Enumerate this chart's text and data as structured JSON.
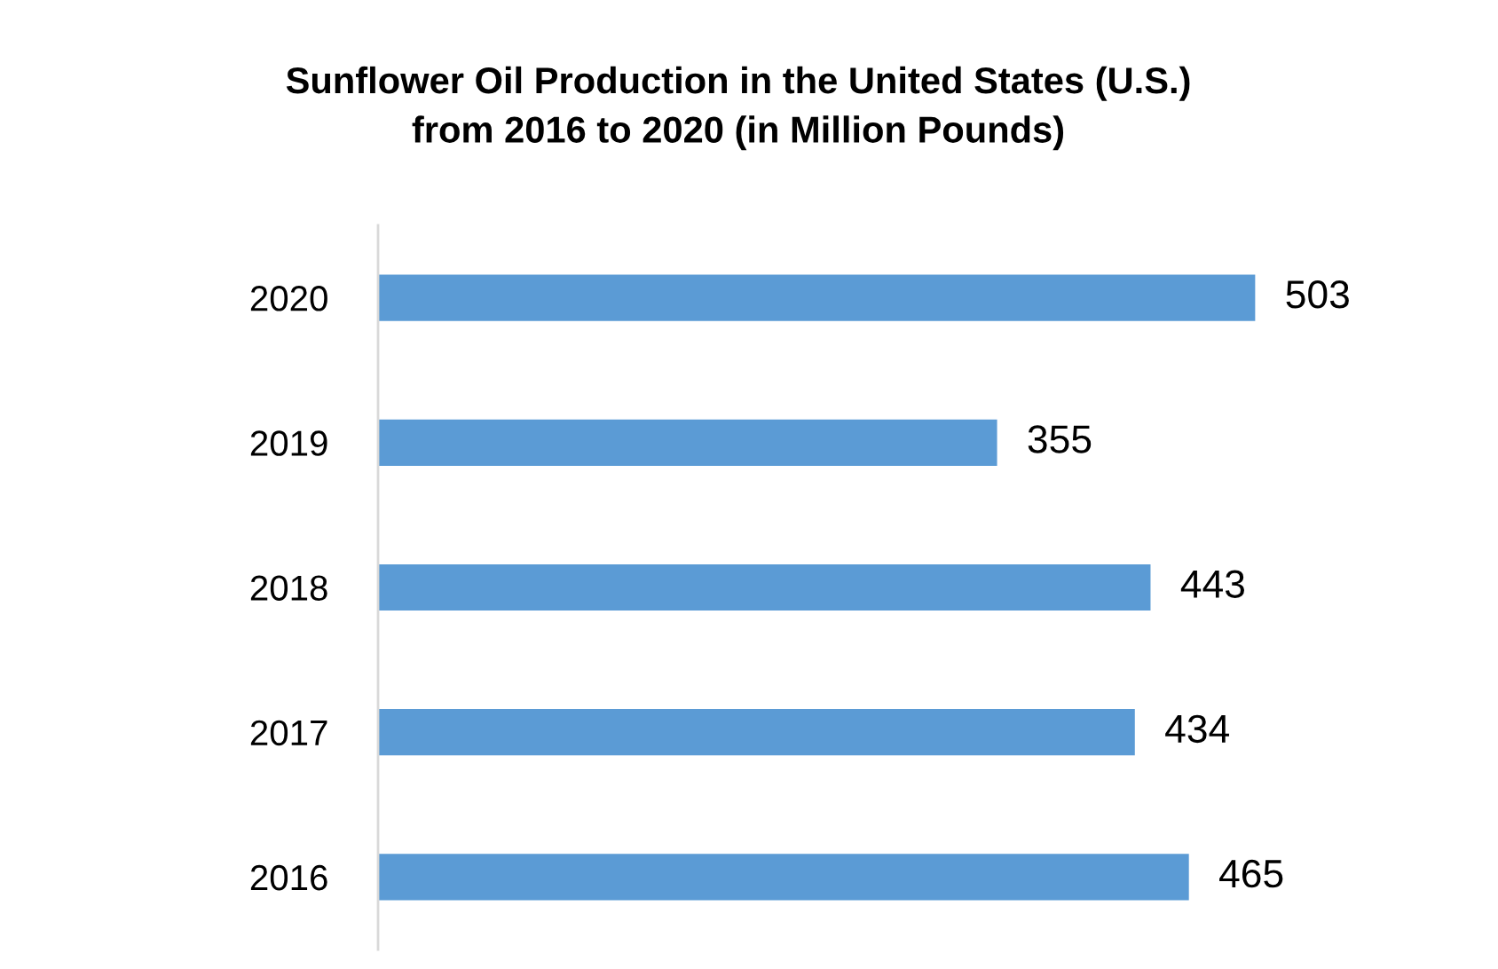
{
  "chart_data": {
    "type": "bar",
    "orientation": "horizontal",
    "title": "Sunflower Oil Production in the United States (U.S.)\nfrom 2016 to 2020 (in Million Pounds)",
    "categories": [
      "2020",
      "2019",
      "2018",
      "2017",
      "2016"
    ],
    "values": [
      503,
      355,
      443,
      434,
      465
    ],
    "color": "#5b9bd5",
    "data_labels": true,
    "tick_labels": "y",
    "grid": false,
    "legend": false
  }
}
